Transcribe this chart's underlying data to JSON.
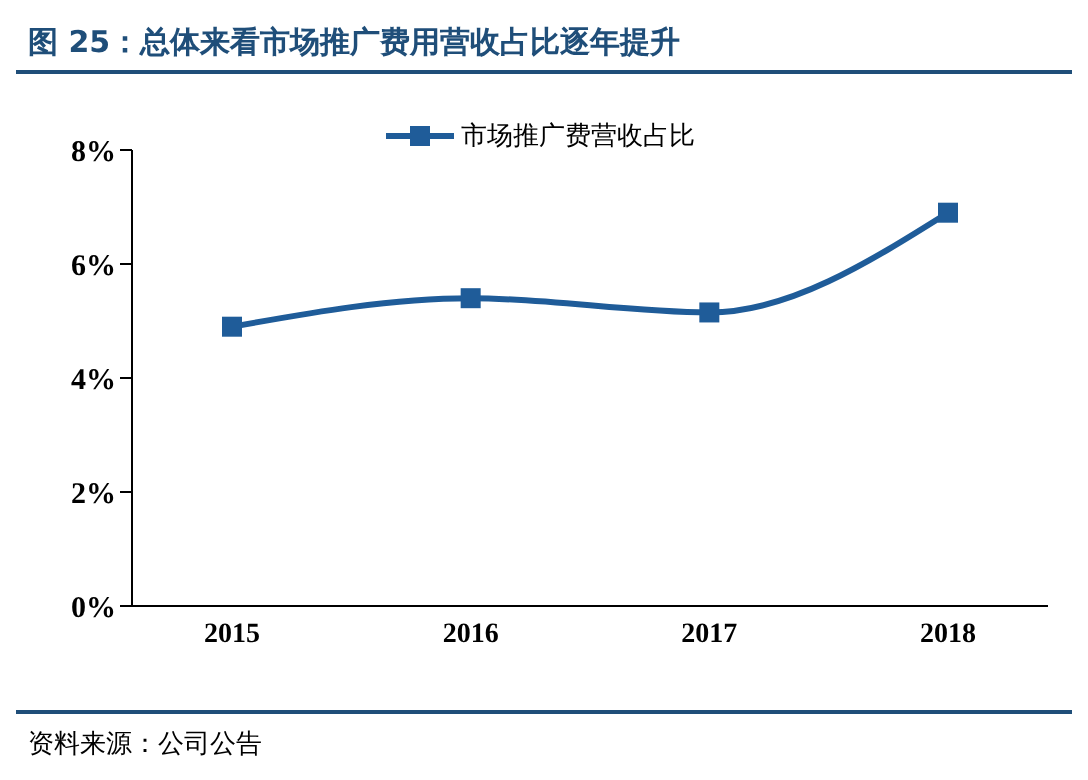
{
  "chart_data": {
    "type": "line",
    "title": "图 25：总体来看市场推广费用营收占比逐年提升",
    "categories": [
      "2015",
      "2016",
      "2017",
      "2018"
    ],
    "series": [
      {
        "name": "市场推广费营收占比",
        "color": "#1f5c99",
        "values": [
          4.9,
          5.4,
          5.15,
          6.9
        ]
      }
    ],
    "ylim": [
      0,
      8
    ],
    "yticks": [
      {
        "value": 0,
        "label": "0%"
      },
      {
        "value": 2,
        "label": "2%"
      },
      {
        "value": 4,
        "label": "4%"
      },
      {
        "value": 6,
        "label": "6%"
      },
      {
        "value": 8,
        "label": "8%"
      }
    ],
    "grid": false,
    "legend": "top",
    "marker": "square",
    "line_style": "solid",
    "annotations": [
      "资料来源：公司公告"
    ]
  }
}
